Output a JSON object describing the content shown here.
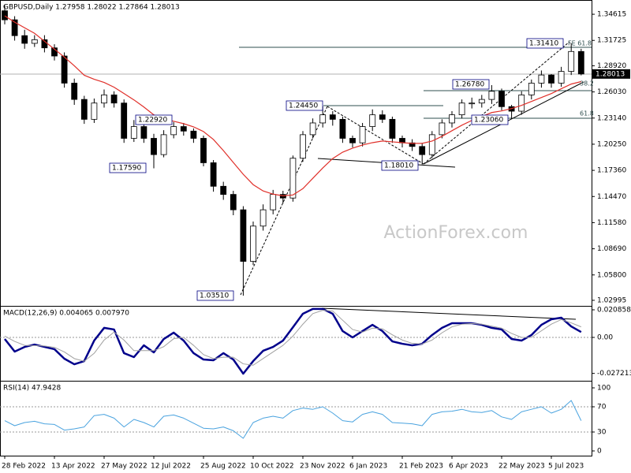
{
  "chart_data": [
    {
      "type": "candlestick",
      "title": "GBPUSD,Daily  1.27958 1.28022 1.27864 1.28013",
      "watermark": "ActionForex.com",
      "categories": [
        "28 Feb 2022",
        null,
        null,
        null,
        null,
        "13 Apr 2022",
        null,
        null,
        null,
        null,
        "27 May 2022",
        null,
        null,
        null,
        null,
        "12 Jul 2022",
        null,
        null,
        null,
        null,
        "25 Aug 2022",
        null,
        null,
        null,
        null,
        "10 Oct 2022",
        null,
        null,
        null,
        null,
        "23 Nov 2022",
        null,
        null,
        null,
        null,
        "6 Jan 2023",
        null,
        null,
        null,
        null,
        "21 Feb 2023",
        null,
        null,
        null,
        null,
        "6 Apr 2023",
        null,
        null,
        null,
        null,
        "22 May 2023",
        null,
        null,
        null,
        null,
        "5 Jul 2023",
        null,
        null,
        null
      ],
      "open": [
        1.35,
        1.34,
        1.3225,
        1.314,
        1.318,
        1.309,
        1.3,
        1.27,
        1.252,
        1.23,
        1.248,
        1.257,
        1.248,
        1.209,
        1.222,
        1.209,
        1.191,
        1.213,
        1.222,
        1.217,
        1.209,
        1.182,
        1.156,
        1.147,
        1.13,
        1.073,
        1.112,
        1.13,
        1.147,
        1.143,
        1.187,
        1.213,
        1.226,
        1.235,
        1.23,
        1.209,
        1.204,
        1.222,
        1.235,
        1.23,
        1.209,
        1.204,
        1.2,
        1.191,
        1.213,
        1.226,
        1.235,
        1.248,
        1.248,
        1.252,
        1.261,
        1.244,
        1.239,
        1.257,
        1.27,
        1.279,
        1.27,
        1.283,
        1.305
      ],
      "high": [
        1.356,
        1.344,
        1.329,
        1.323,
        1.323,
        1.313,
        1.304,
        1.275,
        1.256,
        1.253,
        1.263,
        1.261,
        1.252,
        1.2292,
        1.224,
        1.214,
        1.218,
        1.227,
        1.226,
        1.22,
        1.212,
        1.185,
        1.161,
        1.151,
        1.134,
        1.117,
        1.136,
        1.152,
        1.151,
        1.19,
        1.217,
        1.231,
        1.2445,
        1.239,
        1.233,
        1.212,
        1.226,
        1.241,
        1.24,
        1.233,
        1.212,
        1.208,
        1.204,
        1.217,
        1.23,
        1.239,
        1.252,
        1.254,
        1.257,
        1.2678,
        1.264,
        1.246,
        1.261,
        1.274,
        1.284,
        1.28,
        1.288,
        1.3141,
        1.308
      ],
      "low": [
        1.335,
        1.317,
        1.308,
        1.31,
        1.304,
        1.295,
        1.265,
        1.246,
        1.225,
        1.226,
        1.243,
        1.243,
        1.204,
        1.205,
        1.204,
        1.1759,
        1.188,
        1.209,
        1.212,
        1.204,
        1.178,
        1.15,
        1.141,
        1.124,
        1.0351,
        1.069,
        1.107,
        1.125,
        1.137,
        1.139,
        1.183,
        1.209,
        1.221,
        1.223,
        1.204,
        1.199,
        1.2,
        1.217,
        1.226,
        1.204,
        1.199,
        1.195,
        1.1801,
        1.187,
        1.209,
        1.221,
        1.231,
        1.242,
        1.243,
        1.247,
        1.24,
        1.2306,
        1.235,
        1.252,
        1.265,
        1.265,
        1.266,
        1.279,
        1.2786
      ],
      "close": [
        1.34,
        1.3225,
        1.314,
        1.318,
        1.309,
        1.3,
        1.27,
        1.252,
        1.23,
        1.248,
        1.257,
        1.248,
        1.209,
        1.222,
        1.209,
        1.191,
        1.213,
        1.222,
        1.217,
        1.209,
        1.182,
        1.156,
        1.147,
        1.13,
        1.073,
        1.112,
        1.13,
        1.147,
        1.143,
        1.187,
        1.213,
        1.226,
        1.235,
        1.23,
        1.209,
        1.204,
        1.222,
        1.235,
        1.23,
        1.209,
        1.204,
        1.2,
        1.191,
        1.213,
        1.226,
        1.235,
        1.248,
        1.248,
        1.252,
        1.261,
        1.244,
        1.239,
        1.257,
        1.27,
        1.279,
        1.27,
        1.283,
        1.305,
        1.28013
      ],
      "up_color": "#ffffff",
      "down_color": "#000000",
      "wick_color": "#000000",
      "overlays": [
        {
          "color": "#e0302a",
          "values": [
            1.3444,
            1.3374,
            1.3312,
            1.3251,
            1.3163,
            1.3076,
            1.2988,
            1.2892,
            1.2787,
            1.2743,
            1.2708,
            1.2655,
            1.2585,
            1.2515,
            1.2436,
            1.2349,
            1.2305,
            1.2279,
            1.2252,
            1.2217,
            1.2165,
            1.2077,
            1.1955,
            1.1823,
            1.1692,
            1.1578,
            1.1508,
            1.1473,
            1.1455,
            1.1464,
            1.1534,
            1.1648,
            1.1762,
            1.1867,
            1.1937,
            1.1981,
            1.2016,
            1.2042,
            1.206,
            1.2051,
            1.2042,
            1.2034,
            1.2034,
            1.206,
            1.2112,
            1.2174,
            1.2235,
            1.2288,
            1.2331,
            1.2375,
            1.2393,
            1.2419,
            1.2454,
            1.2498,
            1.2541,
            1.2585,
            1.2638,
            1.269,
            1.2717
          ]
        }
      ],
      "last_price": 1.28013,
      "annotations": [
        "1.03510",
        "1.17590",
        "1.22920",
        "1.24450",
        "1.18010",
        "1.26780",
        "1.23060",
        "1.31410",
        "FE 61.8",
        "38.2",
        "61.8"
      ],
      "ylim": [
        1.0238,
        1.3619
      ],
      "yticks": [
        1.34615,
        1.31725,
        {
          "value": 1.2892,
          "label": "1.28920"
        },
        {
          "value": 1.2603,
          "label": "1.26030"
        },
        {
          "value": 1.2314,
          "label": "1.23140"
        },
        {
          "value": 1.2025,
          "label": "1.20250"
        },
        {
          "value": 1.1736,
          "label": "1.17360"
        },
        {
          "value": 1.1447,
          "label": "1.14470"
        },
        {
          "value": 1.1158,
          "label": "1.11580"
        },
        {
          "value": 1.0869,
          "label": "1.08690"
        },
        {
          "value": 1.058,
          "label": "1.05800"
        },
        1.02995
      ]
    },
    {
      "type": "line",
      "title": "MACD(12,26,9) 0.004065 0.007970",
      "series": [
        {
          "color": "#00008b",
          "width": 2.5,
          "values": [
            -0.0012,
            -0.0107,
            -0.0072,
            -0.0054,
            -0.0072,
            -0.0089,
            -0.0161,
            -0.0203,
            -0.0179,
            -0.0024,
            0.0072,
            0.006,
            -0.0119,
            -0.0149,
            -0.006,
            -0.0113,
            -0.0012,
            0.0036,
            -0.0024,
            -0.0119,
            -0.0167,
            -0.0173,
            -0.0119,
            -0.0167,
            -0.0274,
            -0.0179,
            -0.0101,
            -0.0072,
            -0.0024,
            0.0077,
            0.0179,
            0.0215,
            0.0215,
            0.0179,
            0.0048,
            0.0,
            0.0048,
            0.0095,
            0.0048,
            -0.003,
            -0.0048,
            -0.006,
            -0.0048,
            0.0018,
            0.0072,
            0.0107,
            0.0107,
            0.0107,
            0.0095,
            0.0072,
            0.006,
            -0.0012,
            -0.0024,
            0.0018,
            0.0095,
            0.0137,
            0.0149,
            0.0083,
            0.004065
          ]
        },
        {
          "color": "#a0a0a0",
          "width": 1,
          "values": [
            0.001,
            -0.003,
            -0.006,
            -0.0062,
            -0.0065,
            -0.0075,
            -0.011,
            -0.016,
            -0.018,
            -0.012,
            -0.002,
            0.004,
            -0.002,
            -0.01,
            -0.01,
            -0.01,
            -0.007,
            -0.001,
            0.0,
            -0.006,
            -0.013,
            -0.016,
            -0.015,
            -0.015,
            -0.02,
            -0.021,
            -0.016,
            -0.011,
            -0.006,
            0.001,
            0.01,
            0.018,
            0.0205,
            0.02,
            0.013,
            0.006,
            0.004,
            0.007,
            0.0065,
            0.002,
            -0.002,
            -0.0045,
            -0.005,
            -0.002,
            0.0035,
            0.008,
            0.01,
            0.0105,
            0.01,
            0.0085,
            0.007,
            0.003,
            0.0,
            0.0,
            0.005,
            0.01,
            0.0135,
            0.011,
            0.00797
          ]
        }
      ],
      "ylim": [
        -0.03218,
        0.02384
      ],
      "yticks": [
        0.020858,
        {
          "value": 0,
          "label": "0.00"
        },
        -0.027213
      ],
      "levels": [
        0
      ]
    },
    {
      "type": "line",
      "title": "RSI(14) 47.9428",
      "series": [
        {
          "color": "#4aa3df",
          "width": 1,
          "values": [
            48,
            40,
            45,
            47,
            43,
            42,
            33,
            35,
            38,
            56,
            58,
            52,
            38,
            50,
            45,
            38,
            55,
            57,
            52,
            44,
            36,
            35,
            38,
            32,
            20,
            45,
            52,
            55,
            52,
            64,
            68,
            66,
            70,
            60,
            48,
            46,
            58,
            62,
            58,
            45,
            44,
            43,
            40,
            58,
            62,
            63,
            66,
            62,
            61,
            64,
            54,
            50,
            62,
            66,
            70,
            60,
            66,
            80,
            47.9428
          ]
        }
      ],
      "ylim": [
        -7.5,
        111.25
      ],
      "yticks": [
        100,
        70,
        30,
        0
      ],
      "levels": [
        70,
        30
      ]
    }
  ]
}
